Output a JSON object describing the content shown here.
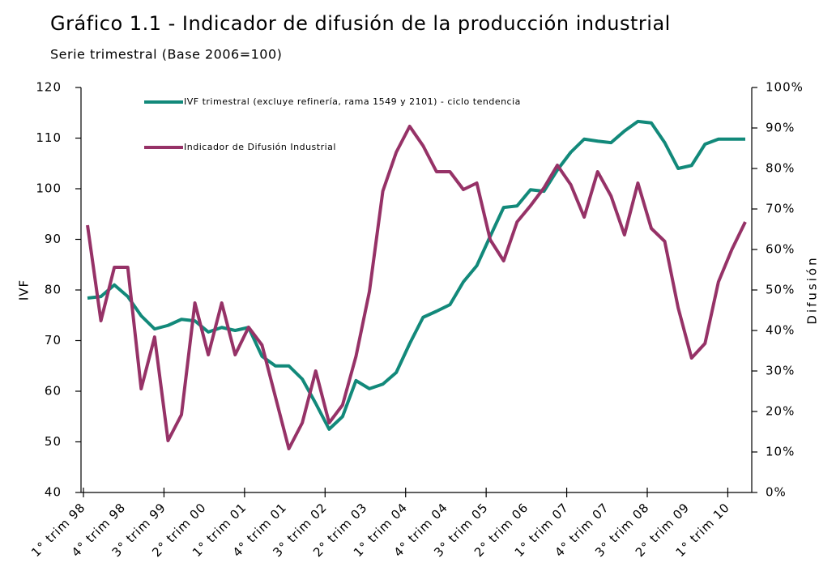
{
  "chart_data": {
    "type": "line",
    "title": "Gráfico 1.1  - Indicador de difusión de la producción industrial",
    "subtitle": "Serie trimestral (Base 2006=100)",
    "y_label": "IVF",
    "y2_label": "Difusión",
    "categories": [
      "1° trim 98",
      null,
      null,
      "4° trim 98",
      null,
      null,
      "3° trim 99",
      null,
      null,
      "2° trim 00",
      null,
      null,
      "1° trim 01",
      null,
      null,
      "4° trim 01",
      null,
      null,
      "3° trim 02",
      null,
      null,
      "2° trim 03",
      null,
      null,
      "1° trim 04",
      null,
      null,
      "4° trim 04",
      null,
      null,
      "3° trim 05",
      null,
      null,
      "2° trim 06",
      null,
      null,
      "1° trim 07",
      null,
      null,
      "4° trim 07",
      null,
      null,
      "3° trim 08",
      null,
      null,
      "2° trim 09",
      null,
      null,
      "1° trim 10",
      null
    ],
    "ylim": [
      40,
      120
    ],
    "yticks": [
      40,
      50,
      60,
      70,
      80,
      90,
      100,
      110,
      120
    ],
    "y2lim": [
      0,
      100
    ],
    "y2ticks": [
      {
        "value": 0,
        "label": "0%"
      },
      {
        "value": 10,
        "label": "10%"
      },
      {
        "value": 20,
        "label": "20%"
      },
      {
        "value": 30,
        "label": "30%"
      },
      {
        "value": 40,
        "label": "40%"
      },
      {
        "value": 50,
        "label": "50%"
      },
      {
        "value": 60,
        "label": "60%"
      },
      {
        "value": 70,
        "label": "70%"
      },
      {
        "value": 80,
        "label": "80%"
      },
      {
        "value": 90,
        "label": "90%"
      },
      {
        "value": 100,
        "label": "100%"
      }
    ],
    "series": [
      {
        "name": "IVF trimestral (excluye refinería,  rama 1549 y 2101) - ciclo tendencia",
        "color": "#12897a",
        "values": [
          78.4,
          78.7,
          81,
          78.7,
          74.9,
          72.3,
          73,
          74.2,
          73.9,
          71.7,
          72.6,
          72,
          72.6,
          66.9,
          65,
          65,
          62.4,
          57.6,
          52.5,
          55,
          62.1,
          60.5,
          61.4,
          63.7,
          69.4,
          74.6,
          75.8,
          77.1,
          81.6,
          84.8,
          90.6,
          96.3,
          96.6,
          99.8,
          99.5,
          103.7,
          107.2,
          109.8,
          109.4,
          109.1,
          111.4,
          113.3,
          113,
          109.1,
          104,
          104.6,
          108.8,
          109.8,
          109.8,
          109.8
        ]
      },
      {
        "name": "Indicador de Difusión Industrial",
        "color": "#963267",
        "axis": "y2",
        "values": [
          66,
          42.4,
          55.6,
          55.6,
          25.6,
          38.4,
          12.8,
          19.2,
          46.8,
          34,
          46.8,
          34,
          40.8,
          36.4,
          23.6,
          10.8,
          17.2,
          30,
          17.2,
          21.6,
          33.6,
          49.6,
          74.4,
          84,
          90.4,
          85.6,
          79.2,
          79.2,
          74.8,
          76.4,
          62.4,
          57.2,
          66.8,
          70.8,
          75.2,
          80.8,
          76,
          68,
          79.2,
          73.2,
          63.6,
          76.4,
          65.2,
          62,
          45.6,
          33.2,
          36.8,
          52,
          60,
          66.8
        ]
      }
    ]
  }
}
